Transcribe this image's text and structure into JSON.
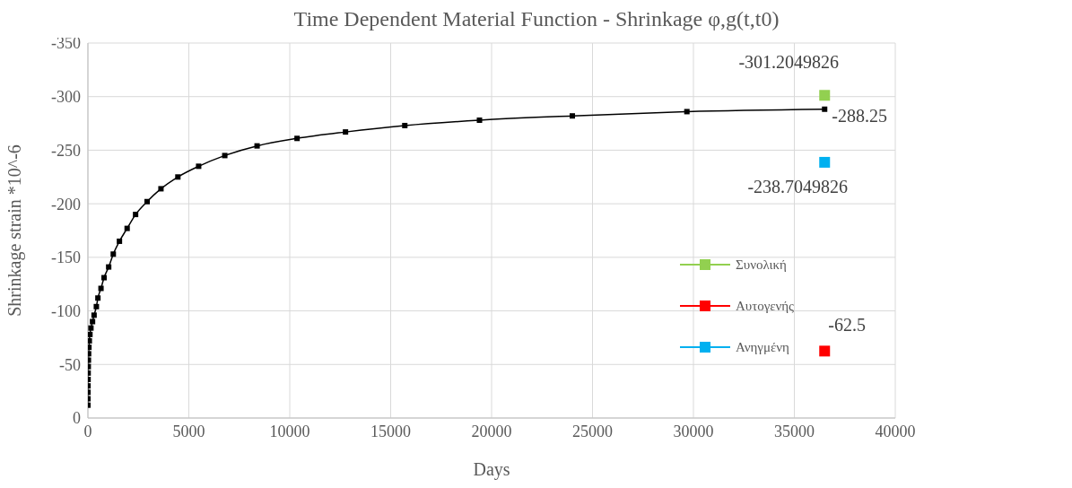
{
  "chart_data": {
    "type": "line",
    "title": "Time Dependent Material Function - Shrinkage φ,g(t,t0)",
    "xlabel": "Days",
    "ylabel": "Shrinkage strain *10^-6",
    "xlim": [
      0,
      40000
    ],
    "xticks": [
      0,
      5000,
      10000,
      15000,
      20000,
      25000,
      30000,
      35000,
      40000
    ],
    "ylim": [
      0,
      -350
    ],
    "yticks": [
      0,
      -50,
      -100,
      -150,
      -200,
      -250,
      -300,
      -350
    ],
    "grid": true,
    "legend": "right",
    "marker": "square",
    "line_style": "solid",
    "series": [
      {
        "color": "#000000",
        "x": [
          1,
          2,
          3,
          5,
          8,
          12,
          18,
          25,
          35,
          50,
          70,
          100,
          150,
          229,
          305,
          419,
          495,
          648,
          800,
          1029,
          1257,
          1562,
          1943,
          2362,
          2933,
          3619,
          4457,
          5486,
          6781,
          8381,
          10362,
          12762,
          15700,
          19400,
          24000,
          29676,
          36500
        ],
        "values": [
          -12,
          -18,
          -24,
          -30,
          -36,
          -42,
          -48,
          -54,
          -60,
          -66,
          -72,
          -78,
          -84,
          -90,
          -96,
          -104,
          -112,
          -121,
          -131,
          -141,
          -153,
          -165,
          -177,
          -190,
          -202,
          -214,
          -225,
          -235,
          -245,
          -254,
          -261,
          -267,
          -273,
          -278,
          -282,
          -286,
          -288.25
        ],
        "value_labels": [
          null,
          null,
          null,
          null,
          null,
          null,
          null,
          null,
          null,
          null,
          null,
          null,
          null,
          null,
          null,
          null,
          null,
          null,
          null,
          null,
          null,
          null,
          null,
          null,
          null,
          null,
          null,
          null,
          null,
          null,
          null,
          null,
          null,
          null,
          null,
          null,
          "-288.25"
        ]
      },
      {
        "name": "Συνολική",
        "color": "#92d050",
        "x": [
          36500
        ],
        "values": [
          -301.2049826
        ],
        "value_labels": [
          "-301.2049826"
        ]
      },
      {
        "name": "Αυτογενής",
        "color": "#ff0000",
        "x": [
          36500
        ],
        "values": [
          -62.5
        ],
        "value_labels": [
          "-62.5"
        ]
      },
      {
        "name": "Ανηγμένη",
        "color": "#00b0f0",
        "x": [
          36500
        ],
        "values": [
          -238.7049826
        ],
        "value_labels": [
          "-238.7049826"
        ]
      }
    ]
  }
}
